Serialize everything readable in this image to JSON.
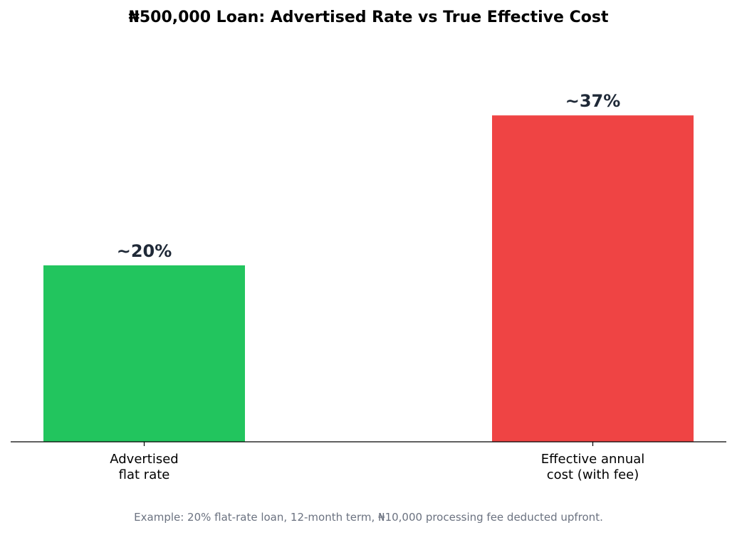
{
  "chart_data": {
    "type": "bar",
    "title": "₦500,000 Loan: Advertised Rate vs True Effective Cost",
    "categories": [
      [
        "Advertised",
        "flat rate"
      ],
      [
        "Effective annual",
        "cost (with fee)"
      ]
    ],
    "values": [
      20,
      37
    ],
    "data_labels": [
      "~20%",
      "~37%"
    ],
    "colors": [
      "#22c55e",
      "#ef4444"
    ],
    "ylim": [
      0,
      45
    ],
    "xlabel": "",
    "ylabel": "",
    "grid": false,
    "y_axis_visible": false,
    "footnote": "Example: 20% flat-rate loan, 12-month term, ₦10,000 processing fee deducted upfront."
  },
  "colors": {
    "label_text": "#1f2937",
    "axis": "#000000",
    "footnote": "#6b7280"
  }
}
